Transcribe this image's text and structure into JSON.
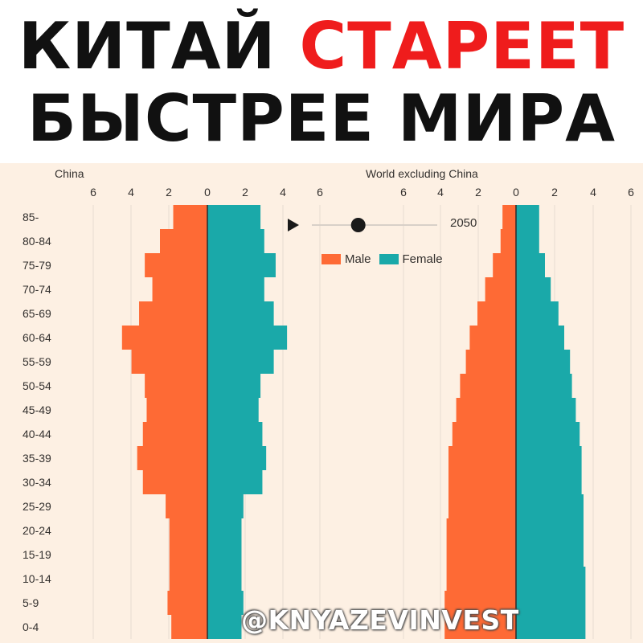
{
  "headline": {
    "line1_part1": "КИТАЙ ",
    "line1_accent": "СТАРЕЕТ",
    "line2": "БЫСТРЕЕ МИРА"
  },
  "colors": {
    "male": "#fe6a35",
    "female": "#1aa9a9",
    "accent": "#ef1c1c",
    "panel_background": "#fdf0e3"
  },
  "controls": {
    "play_icon": "play-icon",
    "year_label": "2050",
    "slider_position": 0.37
  },
  "legend": {
    "male_label": "Male",
    "female_label": "Female"
  },
  "watermark": "@KNYAZEVINVEST",
  "chart_data": [
    {
      "type": "bar",
      "subtype": "population-pyramid",
      "title": "China",
      "x_ticks": [
        "6",
        "4",
        "2",
        "0",
        "2",
        "4"
      ],
      "xlim": [
        -6,
        4.5
      ],
      "grid": true,
      "categories": [
        "85-",
        "80-84",
        "75-79",
        "70-74",
        "65-69",
        "60-64",
        "55-59",
        "50-54",
        "45-49",
        "40-44",
        "35-39",
        "30-34",
        "25-29",
        "20-24",
        "15-19",
        "10-14",
        "5-9",
        "0-4"
      ],
      "series": [
        {
          "name": "Male",
          "values": [
            1.8,
            2.5,
            3.3,
            2.9,
            3.6,
            4.5,
            4.0,
            3.3,
            3.2,
            3.4,
            3.7,
            3.4,
            2.2,
            2.0,
            2.0,
            2.0,
            2.1,
            1.9
          ]
        },
        {
          "name": "Female",
          "values": [
            2.8,
            3.0,
            3.6,
            3.0,
            3.5,
            4.2,
            3.5,
            2.8,
            2.7,
            2.9,
            3.1,
            2.9,
            1.9,
            1.8,
            1.8,
            1.8,
            1.9,
            1.8
          ]
        }
      ]
    },
    {
      "type": "bar",
      "subtype": "population-pyramid",
      "title": "World excluding China",
      "x_ticks": [
        "6",
        "6",
        "4",
        "2",
        "0",
        "2",
        "4",
        "6"
      ],
      "xlim": [
        -6,
        6
      ],
      "grid": true,
      "categories": [
        "85-",
        "80-84",
        "75-79",
        "70-74",
        "65-69",
        "60-64",
        "55-59",
        "50-54",
        "45-49",
        "40-44",
        "35-39",
        "30-34",
        "25-29",
        "20-24",
        "15-19",
        "10-14",
        "5-9",
        "0-4"
      ],
      "series": [
        {
          "name": "Male",
          "values": [
            0.7,
            0.8,
            1.2,
            1.6,
            2.0,
            2.4,
            2.6,
            2.9,
            3.1,
            3.3,
            3.5,
            3.5,
            3.5,
            3.6,
            3.6,
            3.6,
            3.7,
            3.7
          ]
        },
        {
          "name": "Female",
          "values": [
            1.2,
            1.2,
            1.5,
            1.8,
            2.2,
            2.5,
            2.8,
            2.9,
            3.1,
            3.3,
            3.4,
            3.4,
            3.5,
            3.5,
            3.5,
            3.6,
            3.6,
            3.6
          ]
        }
      ]
    }
  ]
}
